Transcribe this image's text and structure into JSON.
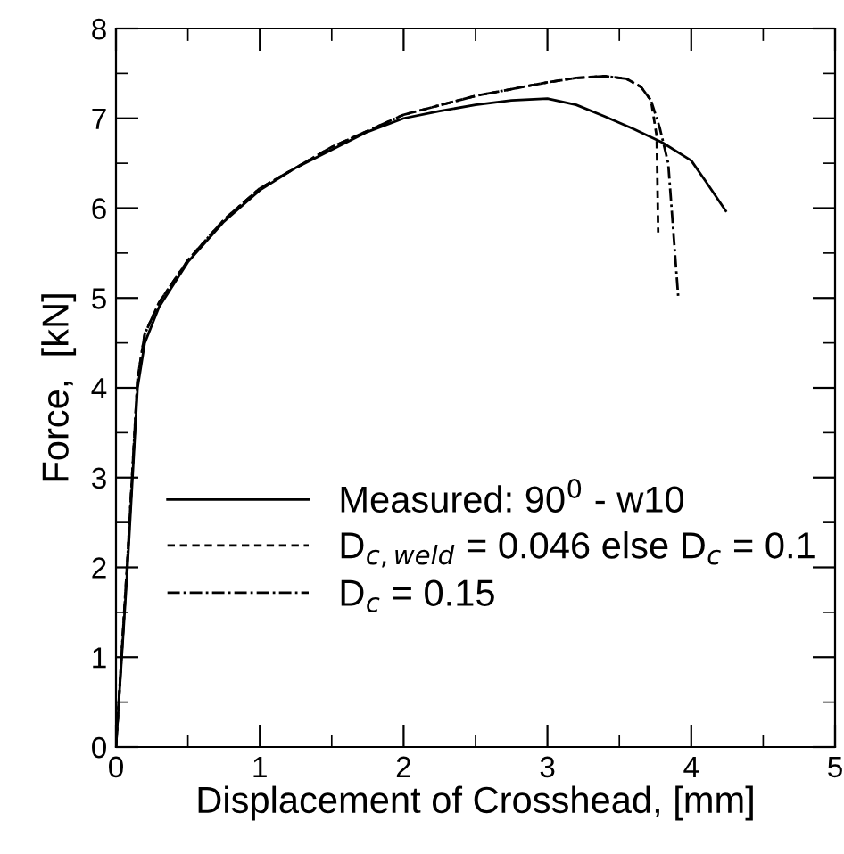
{
  "chart_data": {
    "type": "line",
    "xlabel": "Displacement of Crosshead, [mm]",
    "ylabel": "Force,  [kN]",
    "xlim": [
      0,
      5
    ],
    "ylim": [
      0,
      8
    ],
    "xticks": [
      0,
      1,
      2,
      3,
      4,
      5
    ],
    "yticks": [
      0,
      1,
      2,
      3,
      4,
      5,
      6,
      7,
      8
    ],
    "legend": "bottom right",
    "grid": false,
    "marker": "none",
    "series": [
      {
        "name": "Measured: 90$^{0}$ - w10",
        "color": "#000000",
        "line_style": "solid",
        "x": [
          0,
          0.08,
          0.15,
          0.2,
          0.3,
          0.5,
          0.75,
          1.0,
          1.25,
          1.5,
          1.75,
          2.0,
          2.25,
          2.5,
          2.75,
          3.0,
          3.2,
          3.4,
          3.6,
          3.8,
          4.0,
          4.1,
          4.24
        ],
        "values": [
          0,
          2.0,
          4.0,
          4.5,
          4.9,
          5.4,
          5.85,
          6.2,
          6.45,
          6.65,
          6.85,
          7.0,
          7.08,
          7.15,
          7.2,
          7.22,
          7.15,
          7.02,
          6.88,
          6.73,
          6.53,
          6.3,
          5.97
        ]
      },
      {
        "name": "D$_{c,weld}$ = 0.046 else D$_{c}$ = 0.1",
        "color": "#000000",
        "line_style": "dashed",
        "x": [
          0,
          0.08,
          0.15,
          0.2,
          0.3,
          0.5,
          0.75,
          1.0,
          1.5,
          2.0,
          2.5,
          3.0,
          3.2,
          3.4,
          3.55,
          3.65,
          3.72,
          3.76,
          3.77
        ],
        "values": [
          0,
          2.1,
          4.1,
          4.6,
          4.95,
          5.42,
          5.87,
          6.22,
          6.68,
          7.04,
          7.25,
          7.4,
          7.45,
          7.47,
          7.44,
          7.35,
          7.2,
          6.8,
          5.73
        ]
      },
      {
        "name": "D$_{c}$ = 0.15",
        "color": "#000000",
        "line_style": "dashdot",
        "x": [
          0,
          0.08,
          0.15,
          0.2,
          0.3,
          0.5,
          0.75,
          1.0,
          1.5,
          2.0,
          2.5,
          3.0,
          3.2,
          3.4,
          3.55,
          3.65,
          3.72,
          3.78,
          3.84,
          3.91
        ],
        "values": [
          0,
          2.1,
          4.1,
          4.6,
          4.95,
          5.42,
          5.87,
          6.22,
          6.68,
          7.04,
          7.25,
          7.4,
          7.45,
          7.47,
          7.44,
          7.35,
          7.2,
          6.9,
          6.5,
          5.0
        ]
      }
    ]
  }
}
